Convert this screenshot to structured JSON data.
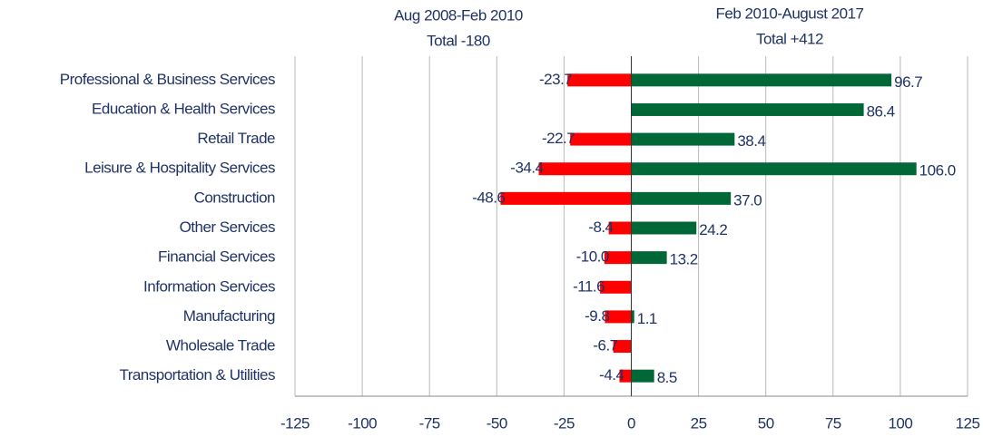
{
  "chart_data": {
    "type": "diverging-bar",
    "categories": [
      "Professional & Business Services",
      "Education & Health Services",
      "Retail Trade",
      "Leisure & Hospitality Services",
      "Construction",
      "Other Services",
      "Financial Services",
      "Information Services",
      "Manufacturing",
      "Wholesale Trade",
      "Transportation & Utilities"
    ],
    "series": [
      {
        "name": "Aug 2008-Feb 2010",
        "total_label": "Total -180",
        "color": "#ff0000",
        "values": [
          -23.7,
          null,
          -22.7,
          -34.4,
          -48.6,
          -8.4,
          -10.0,
          -11.6,
          -9.8,
          -6.7,
          -4.4
        ],
        "value_labels": [
          "-23.7",
          null,
          "-22.7",
          "-34.4",
          "-48.6",
          "-8.4",
          "-10.0",
          "-11.6",
          "-9.8",
          "-6.7",
          "-4.4"
        ]
      },
      {
        "name": "Feb 2010-August 2017",
        "total_label": "Total +412",
        "color": "#006837",
        "values": [
          96.7,
          86.4,
          38.4,
          106.0,
          37.0,
          24.2,
          13.2,
          null,
          1.1,
          null,
          8.5
        ],
        "value_labels": [
          "96.7",
          "86.4",
          "38.4",
          "106.0",
          "37.0",
          "24.2",
          "13.2",
          null,
          "1.1",
          null,
          "8.5"
        ]
      }
    ],
    "xlim": [
      -125,
      125
    ],
    "xticks": [
      -125,
      -100,
      -75,
      -50,
      -25,
      0,
      25,
      50,
      75,
      100,
      125
    ],
    "grid": true
  }
}
